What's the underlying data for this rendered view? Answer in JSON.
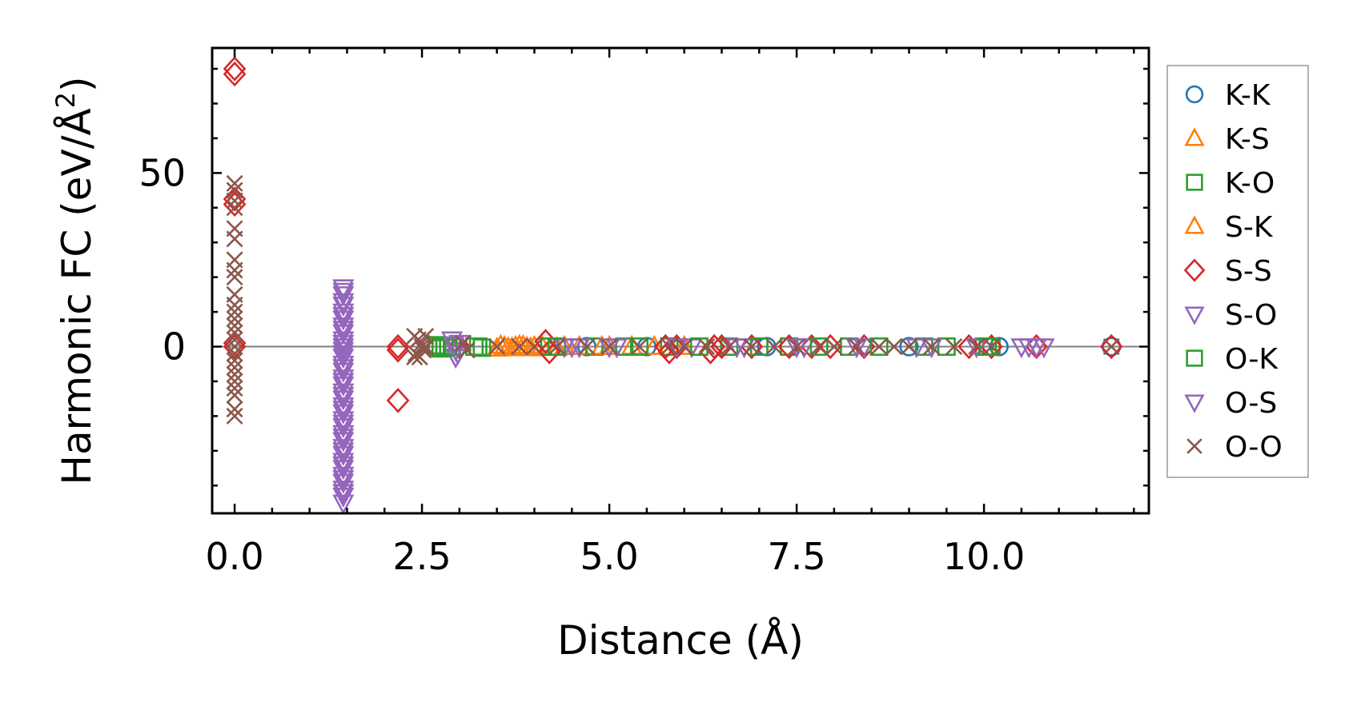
{
  "chart_data": {
    "type": "scatter",
    "title": "",
    "xlabel": "Distance (Å)",
    "ylabel_main": "Harmonic FC (eV/Å",
    "ylabel_sup": "2",
    "ylabel_close": ")",
    "xlim": [
      -0.3,
      12.2
    ],
    "ylim": [
      -48,
      86
    ],
    "xticks": [
      0.0,
      2.5,
      5.0,
      7.5,
      10.0
    ],
    "xtick_labels": [
      "0.0",
      "2.5",
      "5.0",
      "7.5",
      "10.0"
    ],
    "yticks": [
      0,
      50
    ],
    "ytick_labels": [
      "0",
      "50"
    ],
    "zero_line": true,
    "legend_position": "outside-right",
    "series": [
      {
        "name": "K-K",
        "marker": "circle",
        "color": "#1f77b4",
        "x": [
          4.7,
          5.5,
          7.1,
          9.0,
          10.2,
          11.7
        ],
        "y": [
          0,
          0,
          0,
          0,
          0,
          0
        ]
      },
      {
        "name": "K-S",
        "marker": "triangle-up",
        "color": "#ff7f0e",
        "x": [
          3.5,
          3.6,
          3.7,
          3.8,
          3.9,
          4.0,
          4.1,
          4.3,
          4.6,
          5.0,
          5.3,
          6.0
        ],
        "y": [
          -0.5,
          0,
          -0.4,
          0.3,
          -0.2,
          0,
          0.2,
          -0.3,
          0,
          0,
          0,
          0
        ]
      },
      {
        "name": "K-O",
        "marker": "square",
        "color": "#2ca02c",
        "x": [
          2.7,
          2.75,
          2.8,
          2.9,
          3.2,
          3.3,
          4.2,
          4.8,
          5.2,
          5.8,
          6.6,
          7.4,
          8.2,
          9.2,
          10.0,
          10.1
        ],
        "y": [
          0,
          -0.5,
          0.3,
          0,
          0,
          -0.3,
          0,
          0,
          0,
          0,
          0,
          0,
          0,
          0,
          0,
          0
        ]
      },
      {
        "name": "S-K",
        "marker": "triangle-up",
        "color": "#ff7f0e",
        "x": [
          3.55,
          3.65,
          3.75,
          3.85,
          3.95,
          4.4,
          4.9,
          5.6
        ],
        "y": [
          0.3,
          -0.3,
          0,
          0.2,
          -0.4,
          0,
          0,
          0
        ]
      },
      {
        "name": "S-S",
        "marker": "diamond",
        "color": "#d62728",
        "x": [
          0,
          0,
          0,
          0,
          0,
          0,
          2.18,
          2.18,
          2.18,
          3.0,
          4.15,
          4.2,
          5.75,
          5.8,
          5.9,
          6.35,
          6.4,
          6.5,
          6.9,
          7.4,
          7.7,
          7.95,
          8.4,
          9.8,
          10.1,
          10.7,
          11.7
        ],
        "y": [
          78.5,
          80,
          41,
          42.5,
          0,
          1,
          -1,
          0,
          -15.5,
          0,
          1.5,
          -1.5,
          0,
          -1.5,
          0,
          -1.5,
          0,
          0,
          0,
          0,
          0,
          0,
          0,
          0,
          0,
          0,
          0
        ]
      },
      {
        "name": "S-O",
        "marker": "triangle-down",
        "color": "#9467bd",
        "x": [
          1.45,
          1.45,
          1.45,
          1.45,
          1.45,
          1.45,
          1.45,
          1.45,
          1.45,
          1.45,
          1.45,
          1.45,
          1.45,
          1.45,
          1.45,
          1.45,
          1.45,
          1.45,
          1.45,
          1.45,
          1.45,
          1.45,
          1.45,
          1.45,
          1.45,
          1.45,
          1.45,
          1.45,
          1.45,
          1.45,
          1.45,
          1.45,
          2.9,
          2.95,
          2.95,
          3.0,
          4.4,
          4.6,
          5.1,
          6.1,
          6.8,
          7.6,
          8.4,
          9.1,
          9.9,
          10.5,
          10.7,
          10.8
        ],
        "y": [
          17,
          15,
          12,
          10,
          8,
          6,
          4,
          2,
          0,
          -1,
          -3,
          -5,
          -7,
          -9,
          -11,
          -13,
          -15,
          -17,
          -19,
          -21,
          -23,
          -25,
          -27,
          -29,
          -31,
          -33,
          -35,
          -37,
          -39,
          -41,
          -43,
          -45,
          2,
          -1,
          -3,
          1,
          0,
          0,
          0,
          0,
          0,
          0,
          0,
          0,
          0,
          0,
          0,
          0
        ]
      },
      {
        "name": "O-K",
        "marker": "square",
        "color": "#2ca02c",
        "x": [
          2.7,
          2.8,
          2.85,
          3.25,
          4.3,
          5.4,
          6.2,
          7.0,
          7.8,
          8.6,
          9.5,
          10.05
        ],
        "y": [
          0.4,
          -0.3,
          0,
          0,
          0,
          0,
          0,
          0,
          0,
          0,
          0,
          0
        ]
      },
      {
        "name": "O-S",
        "marker": "triangle-down",
        "color": "#9467bd",
        "x": [
          1.45,
          1.45,
          1.45,
          1.45,
          1.45,
          1.45,
          1.45,
          1.45,
          1.45,
          1.45,
          1.45,
          1.45,
          1.45,
          1.45,
          1.45,
          1.45,
          2.92,
          2.98,
          4.5,
          5.0,
          5.9,
          6.7,
          7.5,
          8.3,
          9.3,
          10.6
        ],
        "y": [
          16,
          13,
          9,
          5,
          1,
          -2,
          -6,
          -10,
          -14,
          -18,
          -22,
          -26,
          -30,
          -34,
          -38,
          -42,
          0.5,
          -2,
          0,
          0,
          0,
          0,
          0,
          0,
          0,
          0
        ]
      },
      {
        "name": "O-O",
        "marker": "x",
        "color": "#8c564b",
        "x": [
          0,
          0,
          0,
          0,
          0,
          0,
          0,
          0,
          0,
          0,
          0,
          0,
          0,
          0,
          0,
          0,
          0,
          0,
          0,
          0,
          0,
          0,
          0,
          0,
          0,
          0,
          2.4,
          2.42,
          2.45,
          2.47,
          2.5,
          2.52,
          2.55,
          2.4,
          2.5,
          2.55,
          3.05,
          3.1,
          3.5,
          3.8,
          4.0,
          4.3,
          4.7,
          5.0,
          5.4,
          5.8,
          6.0,
          6.3,
          6.6,
          6.9,
          7.2,
          7.5,
          7.8,
          8.0,
          8.3,
          8.6,
          8.8,
          9.0,
          9.3,
          9.6,
          9.9,
          10.1,
          11.7
        ],
        "y": [
          47,
          45,
          42,
          40,
          34,
          31,
          25,
          22,
          20,
          15,
          12,
          10,
          8,
          6,
          4,
          2,
          0,
          -2,
          -4,
          -6,
          -8,
          -10,
          -12,
          -14,
          -18,
          -20,
          3,
          -2,
          2,
          -3,
          1,
          -1,
          3,
          -3,
          0,
          0,
          1,
          -1,
          0,
          0,
          0,
          0,
          0,
          0,
          0,
          0,
          0,
          0,
          0,
          0,
          0,
          0,
          0,
          0,
          0,
          0,
          0,
          0,
          0,
          0,
          0,
          0,
          0
        ]
      }
    ]
  }
}
